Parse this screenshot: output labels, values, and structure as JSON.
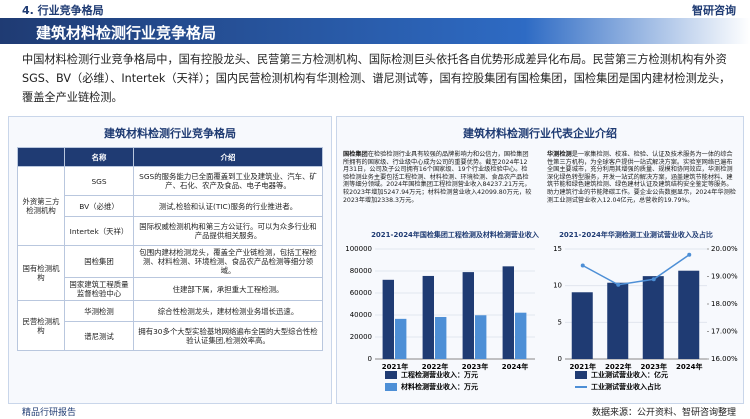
{
  "header": {
    "section": "4. 行业竞争格局",
    "brand": "智研咨询"
  },
  "banner": {
    "title": "建筑材料检测行业竞争格局"
  },
  "intro": "中国材料检测行业竞争格局中，国有控股龙头、民营第三方检测机构、国际检测巨头依托各自优势形成差异化布局。民营第三方检测机构有外资SGS、BV（必维）、Intertek（天祥）；国内民营检测机构有华测检测、谱尼测试等，国有控股集团有国检集团，国检集团是国内建材检测龙头，覆盖全产业链检测。",
  "left_panel": {
    "title": "建筑材料检测行业竞争格局",
    "table": {
      "headers": [
        "名称",
        "介绍"
      ],
      "groups": [
        {
          "label": "外资第三方检测机构",
          "rows": [
            [
              "SGS",
              "SGS的服务能力已全面覆盖到工业及建筑业、汽车、矿产、石化、农产及食品、电子电器等。"
            ],
            [
              "BV（必维）",
              "测试,检验和认证(TIC)服务的行业推进者。"
            ],
            [
              "Intertek（天祥）",
              "国际权威检测机构和第三方公证行。可以为众多行业和产品提供相关服务。"
            ]
          ]
        },
        {
          "label": "国有检测机构",
          "rows": [
            [
              "国检集团",
              "包围内建材检测龙头，覆盖全产业链检测，包括工程检测、材料检测、环境检测、食品农产品检测等细分领域。"
            ],
            [
              "国家建筑工程质量监督检验中心",
              "住建部下属，承担重大工程检测。"
            ]
          ]
        },
        {
          "label": "民营检测机构",
          "rows": [
            [
              "华测检测",
              "综合性检测龙头，建材检测业务增长迅速。"
            ],
            [
              "谱尼测试",
              "拥有30多个大型实验基地网络遍布全国的大型综合性检验认证集团,检测效率高。"
            ]
          ]
        }
      ]
    }
  },
  "right_panel": {
    "title": "建筑材料检测行业代表企业介绍",
    "company_notes": [
      {
        "name": "国检集团",
        "text": "在检验检测行业具有较强的品牌影响力和公信力，国检集团所拥有的国家级、行业级中心成为公司的重要优势。截至2024年12月31日，公司及子公司拥有16个国家级、19个行业级检验中心。检验检测业务主要包括工程检测、材料检测、环境检测、食品农产品检测等细分领域。2024年国检集团工程检测营业收入84237.21万元，较2023年增加5247.94万元；材料检测营业收入42099.80万元，较2023年增加2338.3万元。"
      },
      {
        "name": "华测检测",
        "text": "是一家集检测、校准、检验、认证及技术服务为一体的综合性第三方机构，为全球客户提供一站式解决方案。实验室网络已遍布全国主要城市，充分利用其增强的质量、规模和协同效应，华测检测深化绿色转型服务，开发一站式的解决方案，涵盖建筑节能材料、建筑节能和绿色建筑检测、绿色建材认证及建筑结构安全鉴定等服务。助力建筑行业的节能降碳工作。要企业公告数据显示，2024年华测检测工业测试营业收入12.04亿元，总营收的19.79%。"
      }
    ]
  },
  "chart_data": [
    {
      "type": "bar",
      "title": "2021-2024年国检集团工程检测及材料检测营业收入",
      "categories": [
        "2021年",
        "2022年",
        "2023年",
        "2024年"
      ],
      "series": [
        {
          "name": "工程检测营业收入：万元",
          "color": "#1f3b73",
          "values": [
            72000,
            75500,
            78989.27,
            84237.21
          ]
        },
        {
          "name": "材料检测营业收入：万元",
          "color": "#4d8fd6",
          "values": [
            36500,
            38200,
            39761.5,
            42099.8
          ]
        }
      ],
      "ylim": [
        0,
        100000
      ],
      "yticks": [
        0,
        20000,
        40000,
        60000,
        80000,
        100000
      ]
    },
    {
      "type": "bar-line",
      "title": "2021-2024年华测检测工业测试营业收入及占比",
      "categories": [
        "2021年",
        "2022年",
        "2023年",
        "2024年"
      ],
      "series": [
        {
          "name": "工业测试营业收入：亿元",
          "color": "#1f3b73",
          "values": [
            9.1,
            10.4,
            11.3,
            12.04
          ]
        },
        {
          "name": "工业测试营业收入占比",
          "color": "#4d8fd6",
          "axis": "y2",
          "values": [
            19.4,
            18.7,
            18.9,
            19.79
          ]
        }
      ],
      "ylim": [
        0,
        15
      ],
      "yticks": [
        0,
        5,
        10,
        15
      ],
      "y2lim": [
        16,
        20
      ],
      "y2ticks": [
        {
          "value": 16,
          "label": "16.00%"
        },
        {
          "value": 17,
          "label": "17.00%"
        },
        {
          "value": 18,
          "label": "18.00%"
        },
        {
          "value": 19,
          "label": "19.00%"
        },
        {
          "value": 20,
          "label": "20.00%"
        }
      ]
    }
  ],
  "footer": {
    "left": "精品行研报告",
    "right": "数据来源：公开资料、智研咨询整理"
  }
}
